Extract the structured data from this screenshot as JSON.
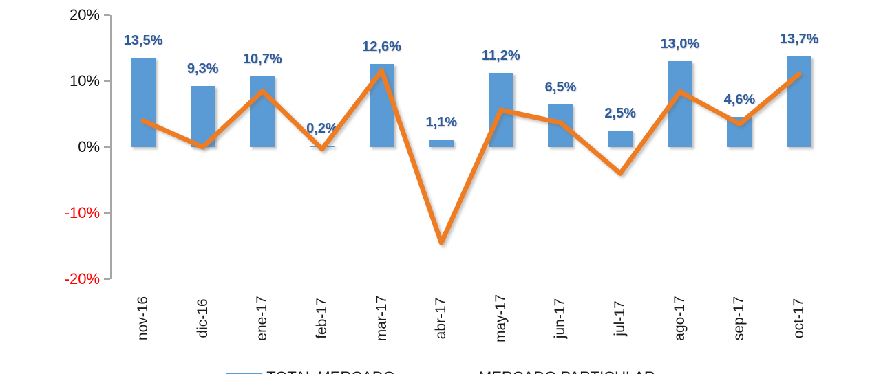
{
  "chart_data": {
    "type": "bar+line combo",
    "categories": [
      "nov-16",
      "dic-16",
      "ene-17",
      "feb-17",
      "mar-17",
      "abr-17",
      "may-17",
      "jun-17",
      "jul-17",
      "ago-17",
      "sep-17",
      "oct-17"
    ],
    "series": [
      {
        "name": "TOTAL MERCADO",
        "type": "bar",
        "color": "#5B9BD5",
        "values": [
          13.5,
          9.3,
          10.7,
          0.2,
          12.6,
          1.1,
          11.2,
          6.5,
          2.5,
          13.0,
          4.6,
          13.7
        ],
        "data_labels": [
          "13,5%",
          "9,3%",
          "10,7%",
          "0,2%",
          "12,6%",
          "1,1%",
          "11,2%",
          "6,5%",
          "2,5%",
          "13,0%",
          "4,6%",
          "13,7%"
        ]
      },
      {
        "name": "MERCADO PARTICULAR",
        "type": "line",
        "color": "#EE7B22",
        "values": [
          4.0,
          0.0,
          8.5,
          -0.3,
          11.6,
          -14.5,
          5.6,
          3.7,
          -4.0,
          8.4,
          3.5,
          11.1
        ]
      }
    ],
    "title": "",
    "xlabel": "",
    "ylabel": "",
    "ylim": [
      -20,
      20
    ],
    "yticks": [
      {
        "label": "20%",
        "value": 20,
        "negative": false
      },
      {
        "label": "10%",
        "value": 10,
        "negative": false
      },
      {
        "label": "0%",
        "value": 0,
        "negative": false
      },
      {
        "label": "-10%",
        "value": -10,
        "negative": true
      },
      {
        "label": "-20%",
        "value": -20,
        "negative": true
      }
    ],
    "grid": false,
    "legend_position": "bottom",
    "data_label_color": "#2E5B9C",
    "negative_tick_color": "#FF0000",
    "axis_color": "#A6A6A6"
  }
}
